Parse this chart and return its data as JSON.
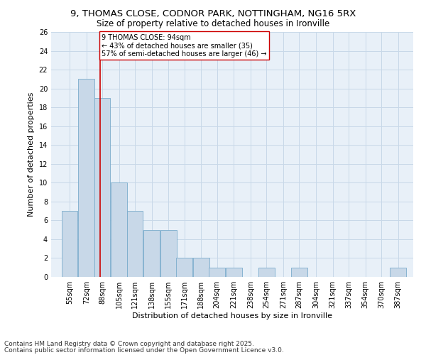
{
  "title1": "9, THOMAS CLOSE, CODNOR PARK, NOTTINGHAM, NG16 5RX",
  "title2": "Size of property relative to detached houses in Ironville",
  "xlabel": "Distribution of detached houses by size in Ironville",
  "ylabel": "Number of detached properties",
  "bins": [
    55,
    72,
    88,
    105,
    121,
    138,
    155,
    171,
    188,
    204,
    221,
    238,
    254,
    271,
    287,
    304,
    321,
    337,
    354,
    370,
    387
  ],
  "values": [
    7,
    21,
    19,
    10,
    7,
    5,
    5,
    2,
    2,
    1,
    1,
    0,
    1,
    0,
    1,
    0,
    0,
    0,
    0,
    0,
    1
  ],
  "bar_color": "#c8d8e8",
  "bar_edge_color": "#7aabcc",
  "vline_x": 94,
  "vline_color": "#cc0000",
  "annotation_text": "9 THOMAS CLOSE: 94sqm\n← 43% of detached houses are smaller (35)\n57% of semi-detached houses are larger (46) →",
  "annotation_box_color": "#ffffff",
  "annotation_box_edge": "#cc0000",
  "ylim": [
    0,
    26
  ],
  "yticks": [
    0,
    2,
    4,
    6,
    8,
    10,
    12,
    14,
    16,
    18,
    20,
    22,
    24,
    26
  ],
  "grid_color": "#c8d8e8",
  "background_color": "#e8f0f8",
  "footer1": "Contains HM Land Registry data © Crown copyright and database right 2025.",
  "footer2": "Contains public sector information licensed under the Open Government Licence v3.0.",
  "title_fontsize": 9.5,
  "subtitle_fontsize": 8.5,
  "axis_label_fontsize": 8,
  "tick_fontsize": 7,
  "annotation_fontsize": 7,
  "footer_fontsize": 6.5
}
